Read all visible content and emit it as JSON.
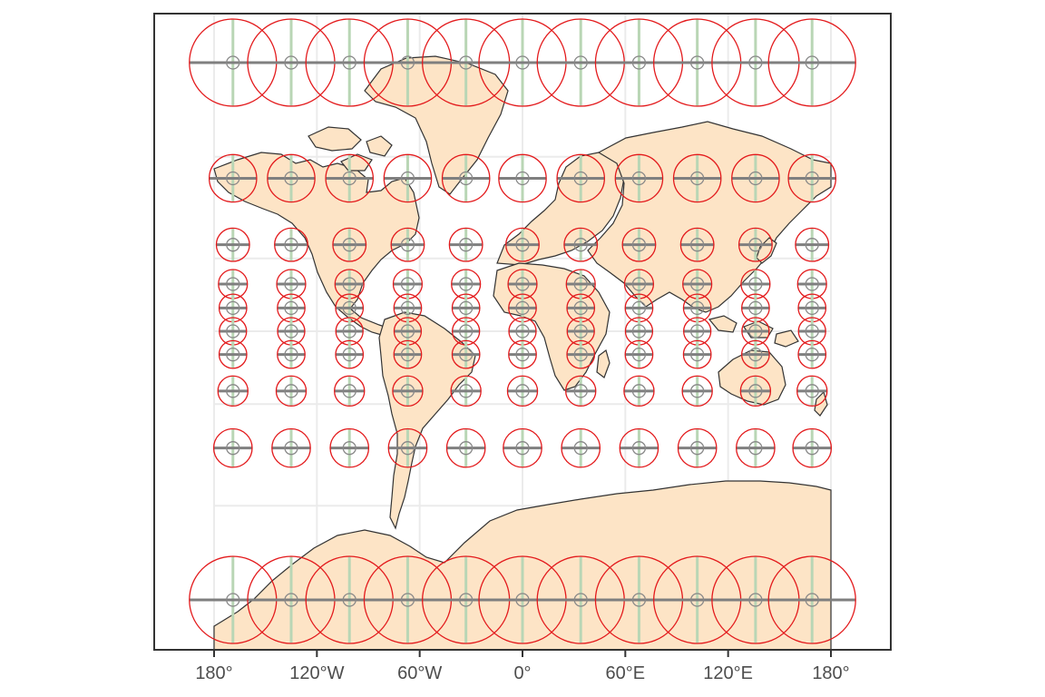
{
  "map": {
    "projection": "mercator",
    "graticule": "on",
    "colors": {
      "panel_border": "#333333",
      "grid": "#ebebeb",
      "land_fill": "#fde4c6",
      "land_stroke": "#333333",
      "indicatrix_circle": "#e31a1c",
      "indicatrix_center": "#888888",
      "meridian_line": "#b9d6b5",
      "parallel_line": "#7f7f7f"
    },
    "x_axis": {
      "ticks": [
        {
          "lon": -180,
          "label": "180°"
        },
        {
          "lon": -120,
          "label": "120°W"
        },
        {
          "lon": -60,
          "label": "60°W"
        },
        {
          "lon": 0,
          "label": "0°"
        },
        {
          "lon": 60,
          "label": "60°E"
        },
        {
          "lon": 120,
          "label": "120°E"
        },
        {
          "lon": 180,
          "label": "180°"
        }
      ]
    },
    "tissot_indicatrix": {
      "longitudes": [
        -169,
        -135,
        -101,
        -67,
        -33,
        0,
        34,
        68,
        102,
        136,
        169
      ],
      "latitudes": [
        75,
        55,
        35,
        20,
        10,
        0,
        -10,
        -25,
        -45,
        -75
      ]
    }
  }
}
